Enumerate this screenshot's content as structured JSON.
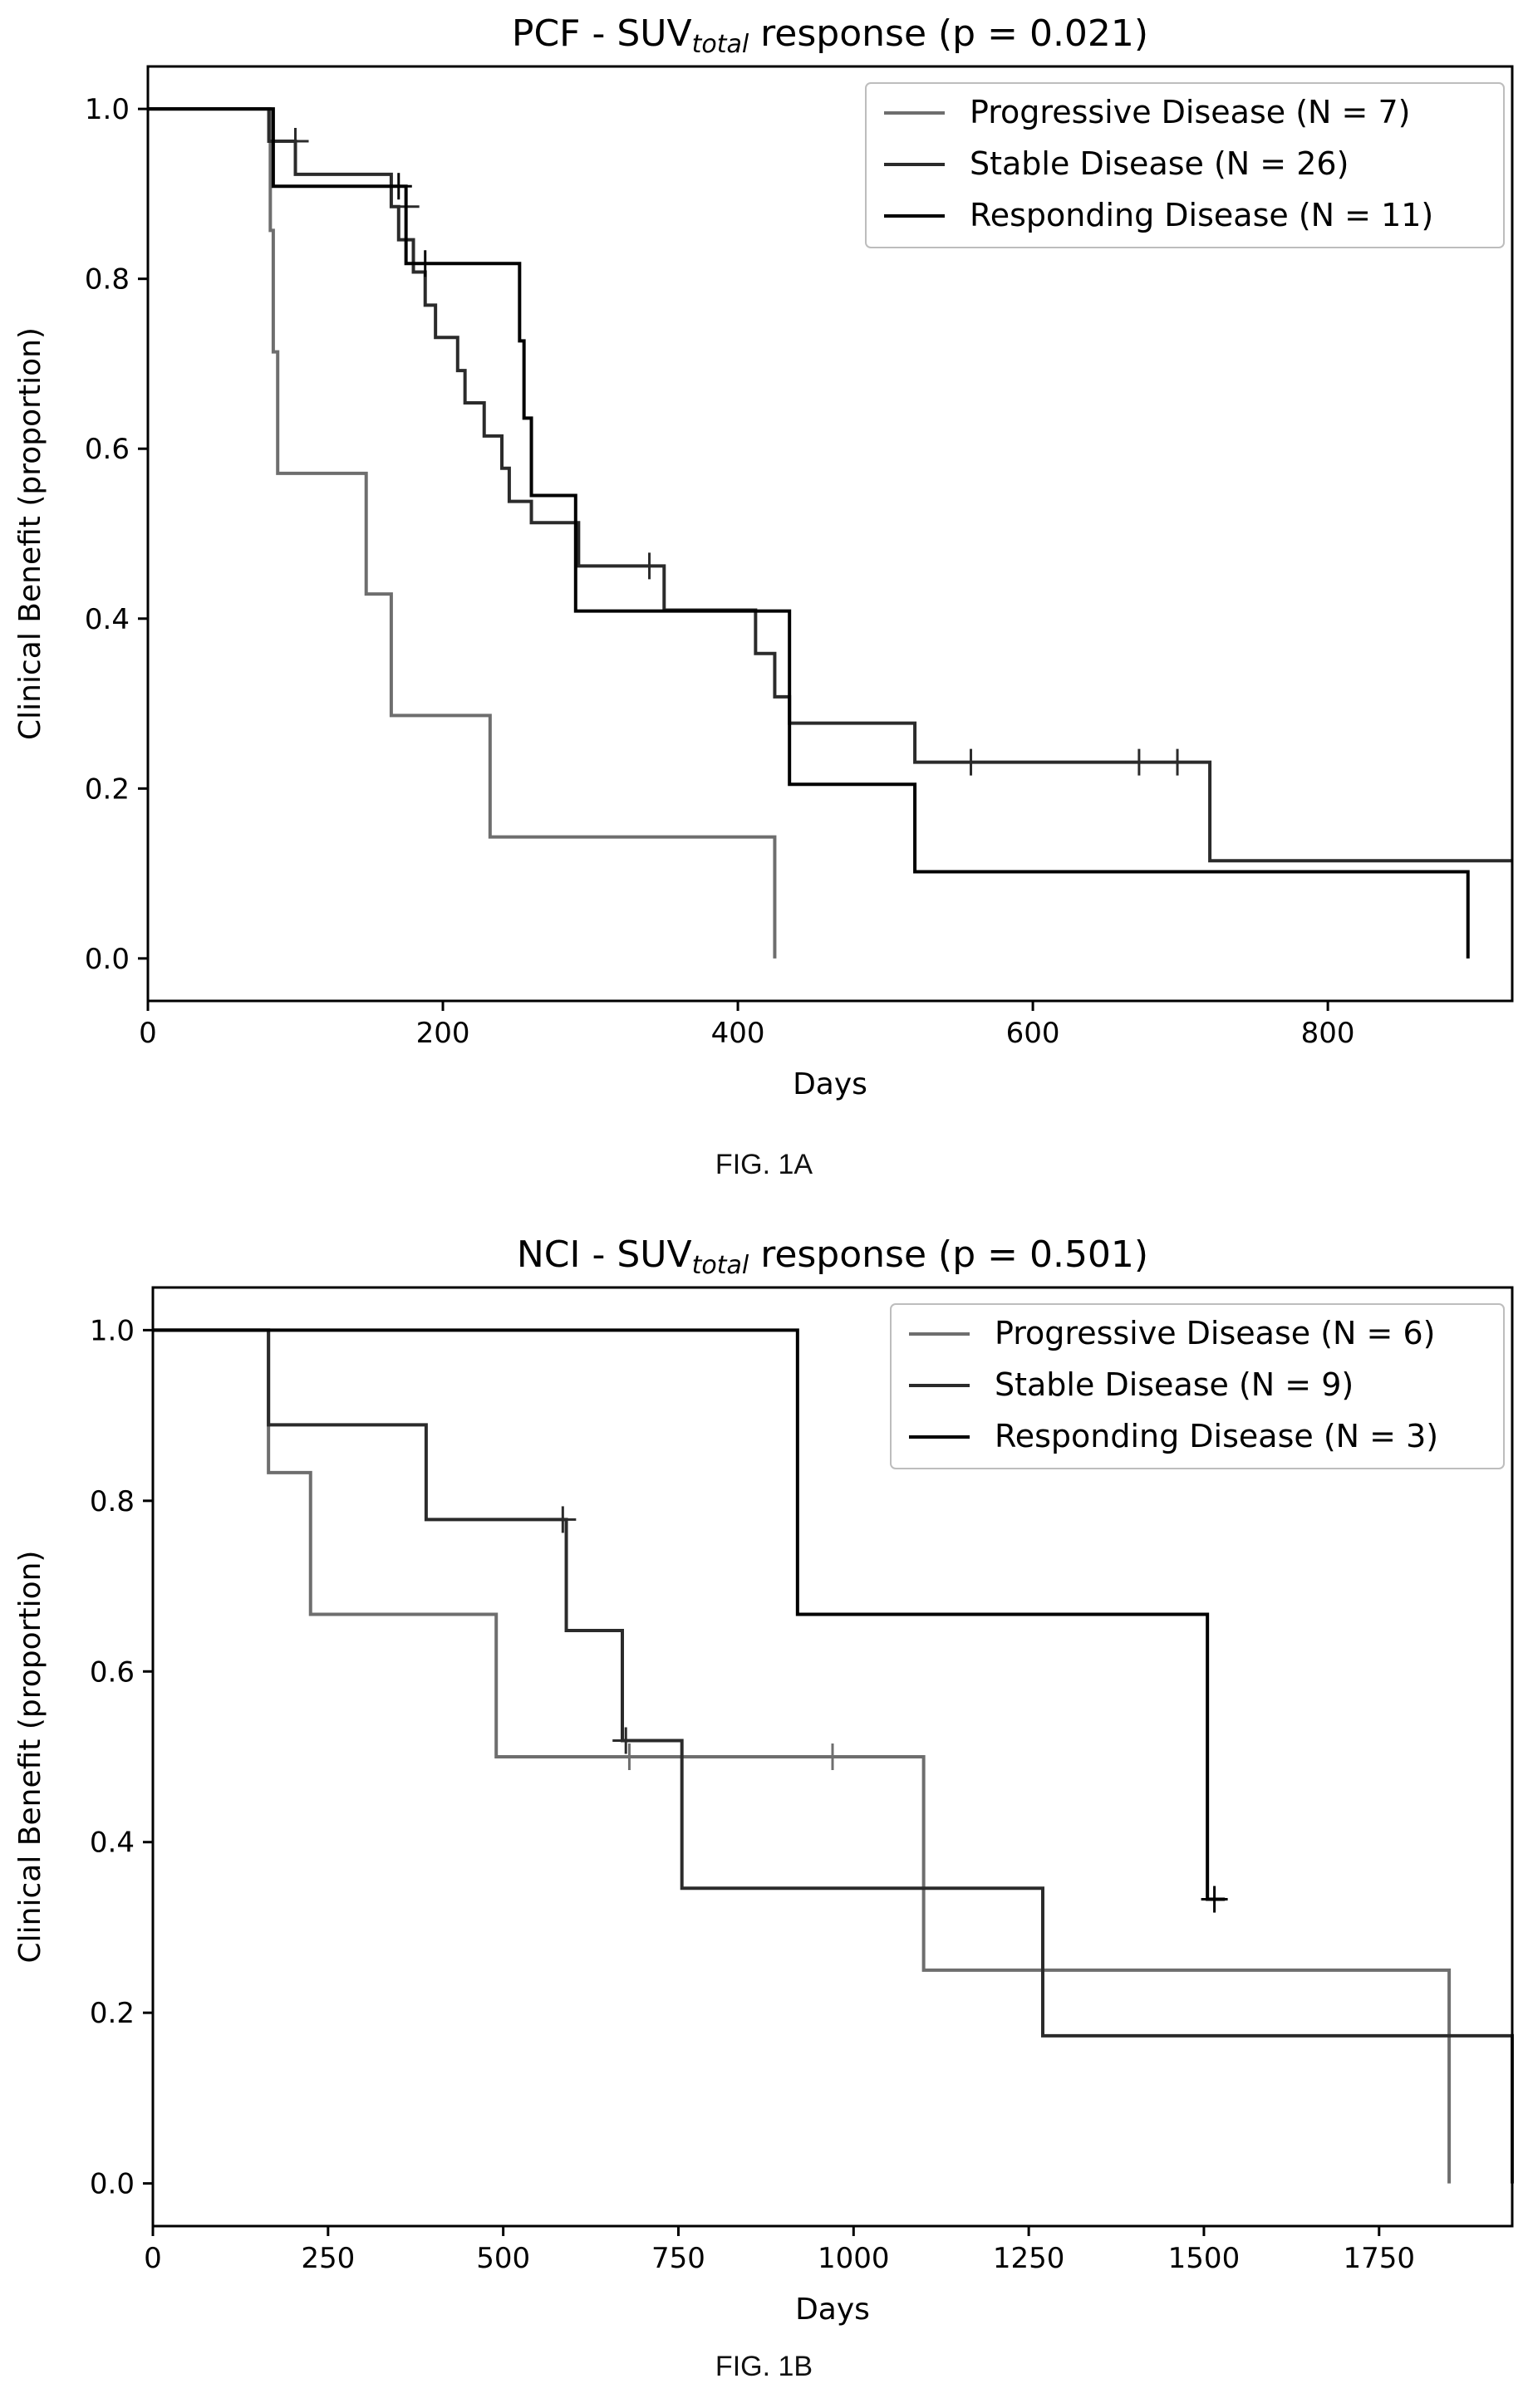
{
  "colors": {
    "progressive": "#6e6e6e",
    "stable": "#2b2b2b",
    "responding": "#000000"
  },
  "captions": [
    "FIG. 1A",
    "FIG. 1B"
  ],
  "chart_data": [
    {
      "type": "line",
      "subtype": "kaplan-meier step",
      "title_prefix": "PCF - SUV",
      "title_sub": "total",
      "title_suffix": " response (p = 0.021)",
      "xlabel": "Days",
      "ylabel": "Clinical Benefit (proportion)",
      "xlim": [
        0,
        925
      ],
      "ylim": [
        -0.05,
        1.05
      ],
      "xticks": [
        0,
        200,
        400,
        600,
        800
      ],
      "yticks": [
        0.0,
        0.2,
        0.4,
        0.6,
        0.8,
        1.0
      ],
      "ytick_labels": [
        "0.0",
        "0.2",
        "0.4",
        "0.6",
        "0.8",
        "1.0"
      ],
      "grid": false,
      "legend_position": "top-right",
      "series": [
        {
          "name": "Progressive Disease (N = 7)",
          "color_key": "progressive",
          "x": [
            0,
            83,
            85,
            88,
            148,
            165,
            232,
            425,
            425
          ],
          "y": [
            1.0,
            0.857,
            0.714,
            0.571,
            0.429,
            0.286,
            0.143,
            0.143,
            0.0
          ],
          "censored": []
        },
        {
          "name": "Stable Disease (N = 26)",
          "color_key": "stable",
          "x": [
            0,
            82,
            90,
            100,
            125,
            165,
            170,
            180,
            188,
            195,
            210,
            215,
            228,
            240,
            245,
            255,
            260,
            290,
            292,
            340,
            350,
            412,
            425,
            435,
            520,
            720,
            925
          ],
          "y": [
            1.0,
            0.962,
            0.962,
            0.923,
            0.923,
            0.885,
            0.846,
            0.808,
            0.769,
            0.731,
            0.692,
            0.654,
            0.615,
            0.577,
            0.538,
            0.538,
            0.513,
            0.513,
            0.462,
            0.462,
            0.41,
            0.359,
            0.308,
            0.277,
            0.231,
            0.115,
            0.115
          ],
          "censored": [
            [
              100,
              0.962
            ],
            [
              175,
              0.885
            ],
            [
              340,
              0.462
            ],
            [
              558,
              0.231
            ],
            [
              672,
              0.231
            ],
            [
              698,
              0.231
            ]
          ]
        },
        {
          "name": "Responding Disease (N = 11)",
          "color_key": "responding",
          "x": [
            0,
            85,
            165,
            175,
            245,
            252,
            255,
            260,
            290,
            410,
            435,
            520,
            895,
            895
          ],
          "y": [
            1.0,
            0.909,
            0.909,
            0.818,
            0.818,
            0.727,
            0.636,
            0.545,
            0.409,
            0.409,
            0.205,
            0.102,
            0.102,
            0.0
          ],
          "censored": [
            [
              170,
              0.909
            ],
            [
              188,
              0.818
            ]
          ]
        }
      ]
    },
    {
      "type": "line",
      "subtype": "kaplan-meier step",
      "title_prefix": "NCI - SUV",
      "title_sub": "total",
      "title_suffix": " response (p = 0.501)",
      "xlabel": "Days",
      "ylabel": "Clinical Benefit (proportion)",
      "xlim": [
        0,
        1940
      ],
      "ylim": [
        -0.05,
        1.05
      ],
      "xticks": [
        0,
        250,
        500,
        750,
        1000,
        1250,
        1500,
        1750
      ],
      "yticks": [
        0.0,
        0.2,
        0.4,
        0.6,
        0.8,
        1.0
      ],
      "ytick_labels": [
        "0.0",
        "0.2",
        "0.4",
        "0.6",
        "0.8",
        "1.0"
      ],
      "grid": false,
      "legend_position": "top-right",
      "series": [
        {
          "name": "Progressive Disease (N = 6)",
          "color_key": "progressive",
          "x": [
            0,
            165,
            225,
            490,
            1100,
            1850,
            1850
          ],
          "y": [
            1.0,
            0.833,
            0.667,
            0.5,
            0.25,
            0.25,
            0.0
          ],
          "censored": [
            [
              680,
              0.5
            ],
            [
              970,
              0.5
            ]
          ]
        },
        {
          "name": "Stable Disease (N = 9)",
          "color_key": "stable",
          "x": [
            0,
            165,
            390,
            590,
            670,
            755,
            1270,
            1940,
            1940
          ],
          "y": [
            1.0,
            0.889,
            0.778,
            0.648,
            0.519,
            0.346,
            0.173,
            0.173,
            0.0
          ],
          "censored": [
            [
              585,
              0.778
            ],
            [
              675,
              0.519
            ]
          ]
        },
        {
          "name": "Responding Disease (N = 3)",
          "color_key": "responding",
          "x": [
            0,
            920,
            1505,
            1530
          ],
          "y": [
            1.0,
            0.667,
            0.333,
            0.333
          ],
          "censored": [
            [
              1515,
              0.333
            ]
          ]
        }
      ]
    }
  ]
}
